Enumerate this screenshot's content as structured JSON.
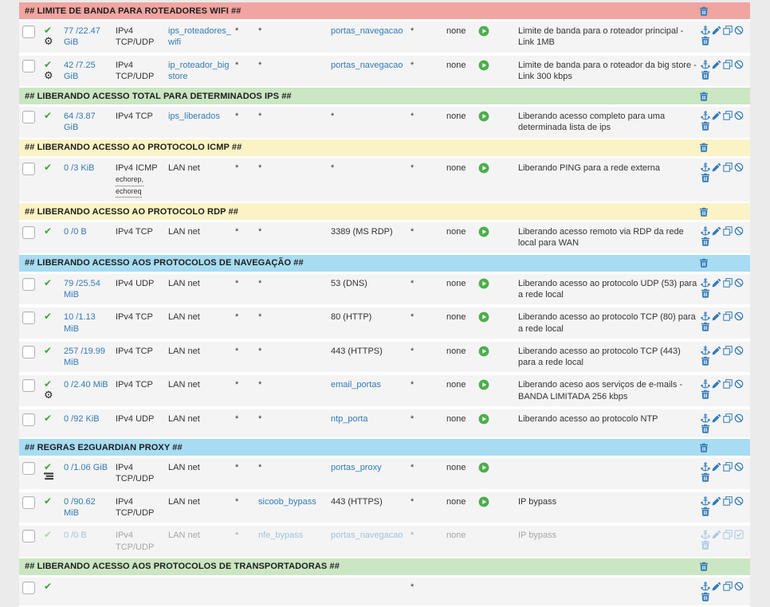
{
  "colors": {
    "section_red": "#f0a5a1",
    "section_green": "#cbe6c2",
    "section_yellow": "#fbf3c5",
    "section_blue": "#a7dcf2",
    "link_blue": "#337ab7",
    "pass_check_green": "#3fa33c",
    "schedule_play_green": "#4cae4c",
    "row_background": "#f4f4f4"
  },
  "sections": [
    {
      "label": "## LIMITE DE BANDA PARA ROTEADORES WIFI ##",
      "color": "red",
      "rules": [
        {
          "states": "77 /22.47 GiB",
          "protocol": "IPv4 TCP/UDP",
          "source": "ips_roteadores_wifi",
          "source_alias": true,
          "src_port": "*",
          "destination": "*",
          "dest_alias": false,
          "dest_port": "portas_navegacao",
          "dest_port_alias": true,
          "gateway": "*",
          "queue": "none",
          "play": true,
          "gear": true,
          "description": "Limite de banda para o roteador principal - Link 1MB"
        },
        {
          "states": "42 /7.25 GiB",
          "protocol": "IPv4 TCP/UDP",
          "source": "ip_roteador_bigstore",
          "source_alias": true,
          "src_port": "*",
          "destination": "*",
          "dest_alias": false,
          "dest_port": "portas_navegacao",
          "dest_port_alias": true,
          "gateway": "*",
          "queue": "none",
          "play": true,
          "gear": true,
          "description": "Limite de banda para o roteador da big store - Link 300 kbps"
        }
      ]
    },
    {
      "label": "## LIBERANDO ACESSO TOTAL PARA DETERMINADOS IPS ##",
      "color": "green",
      "rules": [
        {
          "states": "64 /3.87 GiB",
          "protocol": "IPv4 TCP",
          "source": "ips_liberados",
          "source_alias": true,
          "src_port": "*",
          "destination": "*",
          "dest_alias": false,
          "dest_port": "*",
          "dest_port_alias": false,
          "gateway": "*",
          "queue": "none",
          "play": true,
          "description": "Liberando acesso completo para uma determinada lista de ips"
        }
      ]
    },
    {
      "label": "## LIBERANDO ACESSO AO PROTOCOLO ICMP ##",
      "color": "yellow",
      "rules": [
        {
          "states": "0 /3 KiB",
          "protocol": "IPv4 ICMP",
          "proto_notes": [
            "echorep,",
            "echoreq"
          ],
          "source": "LAN net",
          "source_alias": false,
          "src_port": "*",
          "destination": "*",
          "dest_alias": false,
          "dest_port": "*",
          "dest_port_alias": false,
          "gateway": "*",
          "queue": "none",
          "play": true,
          "description": "Liberando PING para a rede externa"
        }
      ]
    },
    {
      "label": "## LIBERANDO ACESSO AO PROTOCOLO RDP ##",
      "color": "yellow",
      "rules": [
        {
          "states": "0 /0 B",
          "protocol": "IPv4 TCP",
          "source": "LAN net",
          "source_alias": false,
          "src_port": "*",
          "destination": "*",
          "dest_alias": false,
          "dest_port": "3389 (MS RDP)",
          "dest_port_alias": false,
          "gateway": "*",
          "queue": "none",
          "play": true,
          "description": "Liberando acesso remoto via RDP da rede local para WAN"
        }
      ]
    },
    {
      "label": "## LIBERANDO ACESSO AOS PROTOCOLOS DE NAVEGAÇÃO ##",
      "color": "blue",
      "rules": [
        {
          "states": "79 /25.54 MiB",
          "protocol": "IPv4 UDP",
          "source": "LAN net",
          "source_alias": false,
          "src_port": "*",
          "destination": "*",
          "dest_alias": false,
          "dest_port": "53 (DNS)",
          "dest_port_alias": false,
          "gateway": "*",
          "queue": "none",
          "play": true,
          "description": "Liberando acesso ao protocolo UDP (53) para a rede local"
        },
        {
          "states": "10 /1.13 MiB",
          "protocol": "IPv4 TCP",
          "source": "LAN net",
          "source_alias": false,
          "src_port": "*",
          "destination": "*",
          "dest_alias": false,
          "dest_port": "80 (HTTP)",
          "dest_port_alias": false,
          "gateway": "*",
          "queue": "none",
          "play": true,
          "description": "Liberando acesso ao protocolo TCP (80) para a rede local"
        },
        {
          "states": "257 /19.99 MiB",
          "protocol": "IPv4 TCP",
          "source": "LAN net",
          "source_alias": false,
          "src_port": "*",
          "destination": "*",
          "dest_alias": false,
          "dest_port": "443 (HTTPS)",
          "dest_port_alias": false,
          "gateway": "*",
          "queue": "none",
          "play": true,
          "description": "Liberando acesso ao protocolo TCP (443) para a rede local"
        },
        {
          "states": "0 /2.40 MiB",
          "protocol": "IPv4 TCP",
          "source": "LAN net",
          "source_alias": false,
          "src_port": "*",
          "destination": "*",
          "dest_alias": false,
          "dest_port": "email_portas",
          "dest_port_alias": true,
          "gateway": "*",
          "queue": "none",
          "play": true,
          "gear": true,
          "description": "Liberando aceso aos serviços de e-mails - BANDA LIMITADA 256 kbps"
        },
        {
          "states": "0 /92 KiB",
          "protocol": "IPv4 UDP",
          "source": "LAN net",
          "source_alias": false,
          "src_port": "*",
          "destination": "*",
          "dest_alias": false,
          "dest_port": "ntp_porta",
          "dest_port_alias": true,
          "gateway": "*",
          "queue": "none",
          "play": true,
          "description": "Liberando acesso ao protocolo NTP"
        }
      ]
    },
    {
      "label": "## REGRAS E2GUARDIAN PROXY ##",
      "color": "blue",
      "rules": [
        {
          "states": "0 /1.06 GiB",
          "protocol": "IPv4 TCP/UDP",
          "source": "LAN net",
          "source_alias": false,
          "src_port": "*",
          "destination": "*",
          "dest_alias": false,
          "dest_port": "portas_proxy",
          "dest_port_alias": true,
          "gateway": "*",
          "queue": "none",
          "play": true,
          "queue_icon": true,
          "description": ""
        },
        {
          "states": "0 /90.62 MiB",
          "protocol": "IPv4 TCP/UDP",
          "source": "LAN net",
          "source_alias": false,
          "src_port": "*",
          "destination": "sicoob_bypass",
          "dest_alias": true,
          "dest_port": "443 (HTTPS)",
          "dest_port_alias": false,
          "gateway": "*",
          "queue": "none",
          "play": true,
          "description": "IP bypass"
        },
        {
          "states": "0 /0 B",
          "protocol": "IPv4 TCP/UDP",
          "source": "LAN net",
          "source_alias": false,
          "src_port": "*",
          "destination": "nfe_bypass",
          "dest_alias": true,
          "dest_port": "portas_navegacao",
          "dest_port_alias": true,
          "gateway": "*",
          "queue": "none",
          "play": false,
          "disabled": true,
          "description": "IP bypass"
        }
      ]
    },
    {
      "label": "## LIBERANDO ACESSO AOS PROTOCOLOS DE TRANSPORTADORAS ##",
      "color": "green",
      "rules": [
        {
          "states": "",
          "protocol": "",
          "source": "",
          "source_alias": false,
          "src_port": "",
          "destination": "",
          "dest_alias": false,
          "dest_port": "",
          "dest_port_alias": false,
          "gateway": "*",
          "queue": "",
          "play": false,
          "partial": true,
          "description": ""
        }
      ]
    }
  ]
}
